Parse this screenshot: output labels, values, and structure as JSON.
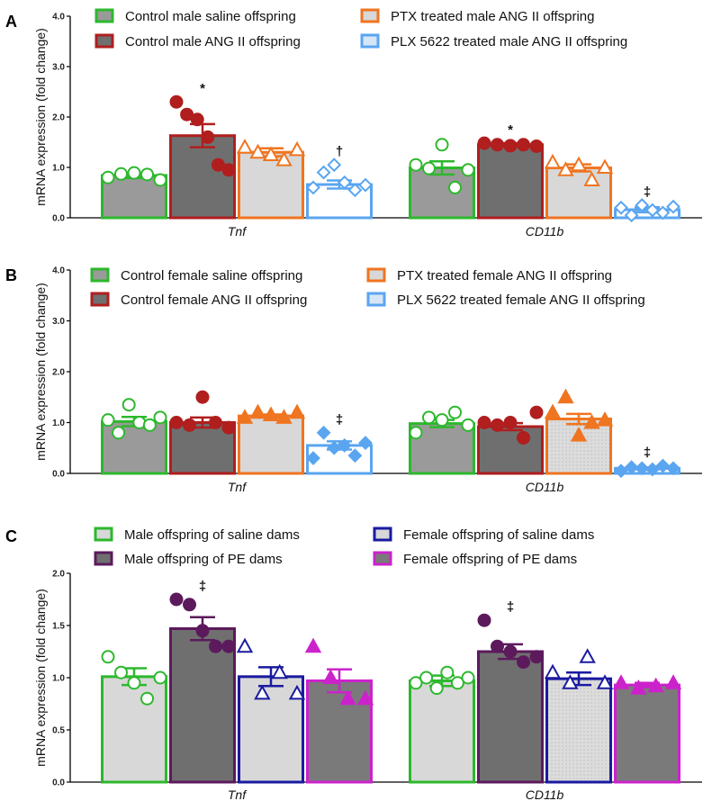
{
  "panels": [
    {
      "letter": "A",
      "type": "bar",
      "ylabel": "mRNA expression (fold change)",
      "ylim": [
        0,
        4
      ],
      "yticks": [
        "0.0",
        "1.0",
        "2.0",
        "3.0",
        "4.0"
      ],
      "categories": [
        "Tnf",
        "CD11b"
      ],
      "series": [
        {
          "name": "Control male saline offspring",
          "stroke": "#2db82d",
          "fill": "#9a9a9a",
          "pattern": "solid",
          "marker": "circle",
          "marker_fill": "open",
          "values": [
            0.84,
            0.99
          ],
          "sem": [
            0.05,
            0.13
          ],
          "points": [
            [
              0.8,
              0.87,
              0.89,
              0.86,
              0.75
            ],
            [
              1.05,
              0.98,
              1.45,
              0.6,
              0.95
            ]
          ],
          "sig": [
            "",
            ""
          ]
        },
        {
          "name": "Control male ANG II offspring",
          "stroke": "#b01e1e",
          "fill": "#6f6f6f",
          "pattern": "solid",
          "marker": "circle",
          "marker_fill": "filled",
          "values": [
            1.63,
            1.45
          ],
          "sem": [
            0.23,
            0.03
          ],
          "points": [
            [
              2.3,
              2.05,
              1.95,
              1.6,
              1.05,
              0.95
            ],
            [
              1.48,
              1.45,
              1.43,
              1.45,
              1.42
            ]
          ],
          "sig": [
            "*",
            "*"
          ]
        },
        {
          "name": "PTX treated male ANG II offspring",
          "stroke": "#f07520",
          "fill": "#d8d8d8",
          "pattern": "solid",
          "marker": "triangle",
          "marker_fill": "open",
          "values": [
            1.3,
            0.99
          ],
          "sem": [
            0.08,
            0.07
          ],
          "points": [
            [
              1.4,
              1.3,
              1.25,
              1.15,
              1.35
            ],
            [
              1.1,
              0.95,
              1.05,
              0.75,
              1.0
            ]
          ],
          "sig": [
            "",
            ""
          ]
        },
        {
          "name": "PLX 5622 treated male ANG II offspring",
          "stroke": "#5aa5f0",
          "fill": "#ffffff",
          "pattern": "solid",
          "marker": "diamond",
          "marker_fill": "open",
          "values": [
            0.66,
            0.16
          ],
          "sem": [
            0.08,
            0.05
          ],
          "points": [
            [
              0.6,
              0.9,
              1.05,
              0.7,
              0.55,
              0.65
            ],
            [
              0.2,
              0.05,
              0.25,
              0.15,
              0.1,
              0.22
            ]
          ],
          "sig": [
            "†",
            "‡"
          ]
        }
      ]
    },
    {
      "letter": "B",
      "type": "bar",
      "ylabel": "mRNA expression (fold change)",
      "ylim": [
        0,
        4
      ],
      "yticks": [
        "0.0",
        "1.0",
        "2.0",
        "3.0",
        "4.0"
      ],
      "categories": [
        "Tnf",
        "CD11b"
      ],
      "series": [
        {
          "name": "Control female saline offspring",
          "stroke": "#2db82d",
          "fill": "#9a9a9a",
          "pattern": "solid",
          "marker": "circle",
          "marker_fill": "open",
          "values": [
            1.02,
            0.98
          ],
          "sem": [
            0.09,
            0.07
          ],
          "points": [
            [
              1.05,
              0.8,
              1.35,
              1.0,
              0.95,
              1.1
            ],
            [
              0.8,
              1.1,
              1.05,
              1.2,
              0.95
            ]
          ],
          "sig": [
            "",
            ""
          ]
        },
        {
          "name": "Control female ANG II offspring",
          "stroke": "#b01e1e",
          "fill": "#6f6f6f",
          "pattern": "solid",
          "marker": "circle",
          "marker_fill": "filled",
          "values": [
            1.0,
            0.92
          ],
          "sem": [
            0.1,
            0.07
          ],
          "points": [
            [
              1.0,
              0.95,
              1.5,
              1.0,
              0.9
            ],
            [
              1.0,
              0.95,
              1.0,
              0.7,
              1.2
            ]
          ],
          "sig": [
            "",
            ""
          ]
        },
        {
          "name": "PTX treated female ANG II offspring",
          "stroke": "#f07520",
          "fill": "#d8d8d8",
          "pattern": "solid",
          "marker": "triangle",
          "marker_fill": "filled",
          "values": [
            1.13,
            1.07
          ],
          "sem": [
            0.03,
            0.1
          ],
          "points": [
            [
              1.1,
              1.2,
              1.15,
              1.1,
              1.2
            ],
            [
              1.2,
              1.5,
              0.75,
              1.0,
              1.05
            ]
          ],
          "sig": [
            "",
            ""
          ]
        },
        {
          "name": "PLX 5622 treated female ANG II offspring",
          "stroke": "#5aa5f0",
          "fill": "#ffffff",
          "pattern": "solid",
          "marker": "diamond",
          "marker_fill": "filled",
          "values": [
            0.55,
            0.1
          ],
          "sem": [
            0.08,
            0.02
          ],
          "points": [
            [
              0.3,
              0.8,
              0.5,
              0.55,
              0.35,
              0.6
            ],
            [
              0.05,
              0.12,
              0.1,
              0.08,
              0.15,
              0.1
            ]
          ],
          "sig": [
            "‡",
            "‡"
          ]
        }
      ]
    },
    {
      "letter": "C",
      "type": "bar",
      "ylabel": "mRNA expression (fold change)",
      "ylim": [
        0,
        2
      ],
      "yticks": [
        "0.0",
        "0.5",
        "1.0",
        "1.5",
        "2.0"
      ],
      "categories": [
        "Tnf",
        "CD11b"
      ],
      "series": [
        {
          "name": "Male offspring of saline dams",
          "stroke": "#2db82d",
          "fill": "#d8d8d8",
          "pattern": "solid",
          "marker": "circle",
          "marker_fill": "open",
          "values": [
            1.01,
            0.97
          ],
          "sem": [
            0.08,
            0.05
          ],
          "points": [
            [
              1.2,
              1.05,
              0.95,
              0.8,
              1.0
            ],
            [
              0.95,
              1.0,
              0.9,
              1.05,
              0.95,
              1.0
            ]
          ],
          "sig": [
            "",
            ""
          ]
        },
        {
          "name": "Male offspring of PE dams",
          "stroke": "#5c1a5c",
          "fill": "#6f6f6f",
          "pattern": "solid",
          "marker": "circle",
          "marker_fill": "filled",
          "values": [
            1.47,
            1.25
          ],
          "sem": [
            0.11,
            0.07
          ],
          "points": [
            [
              1.75,
              1.7,
              1.45,
              1.3,
              1.3
            ],
            [
              1.55,
              1.3,
              1.25,
              1.15,
              1.2
            ]
          ],
          "sig": [
            "‡",
            "‡"
          ]
        },
        {
          "name": "Female offspring of saline dams",
          "stroke": "#1a1aa0",
          "fill": "#d8d8d8",
          "pattern": "solid",
          "marker": "triangle",
          "marker_fill": "open",
          "values": [
            1.01,
            0.99
          ],
          "sem": [
            0.09,
            0.06
          ],
          "points": [
            [
              1.3,
              0.85,
              1.05,
              0.85
            ],
            [
              1.05,
              0.95,
              1.2,
              0.95
            ]
          ],
          "sig": [
            "",
            ""
          ]
        },
        {
          "name": "Female offspring of PE dams",
          "stroke": "#cc22cc",
          "fill": "#7a7a7a",
          "pattern": "solid",
          "marker": "triangle",
          "marker_fill": "filled",
          "values": [
            0.97,
            0.93
          ],
          "sem": [
            0.11,
            0.02
          ],
          "points": [
            [
              1.3,
              1.0,
              0.8,
              0.8
            ],
            [
              0.95,
              0.9,
              0.92,
              0.95
            ]
          ],
          "sig": [
            "",
            ""
          ]
        }
      ]
    }
  ]
}
